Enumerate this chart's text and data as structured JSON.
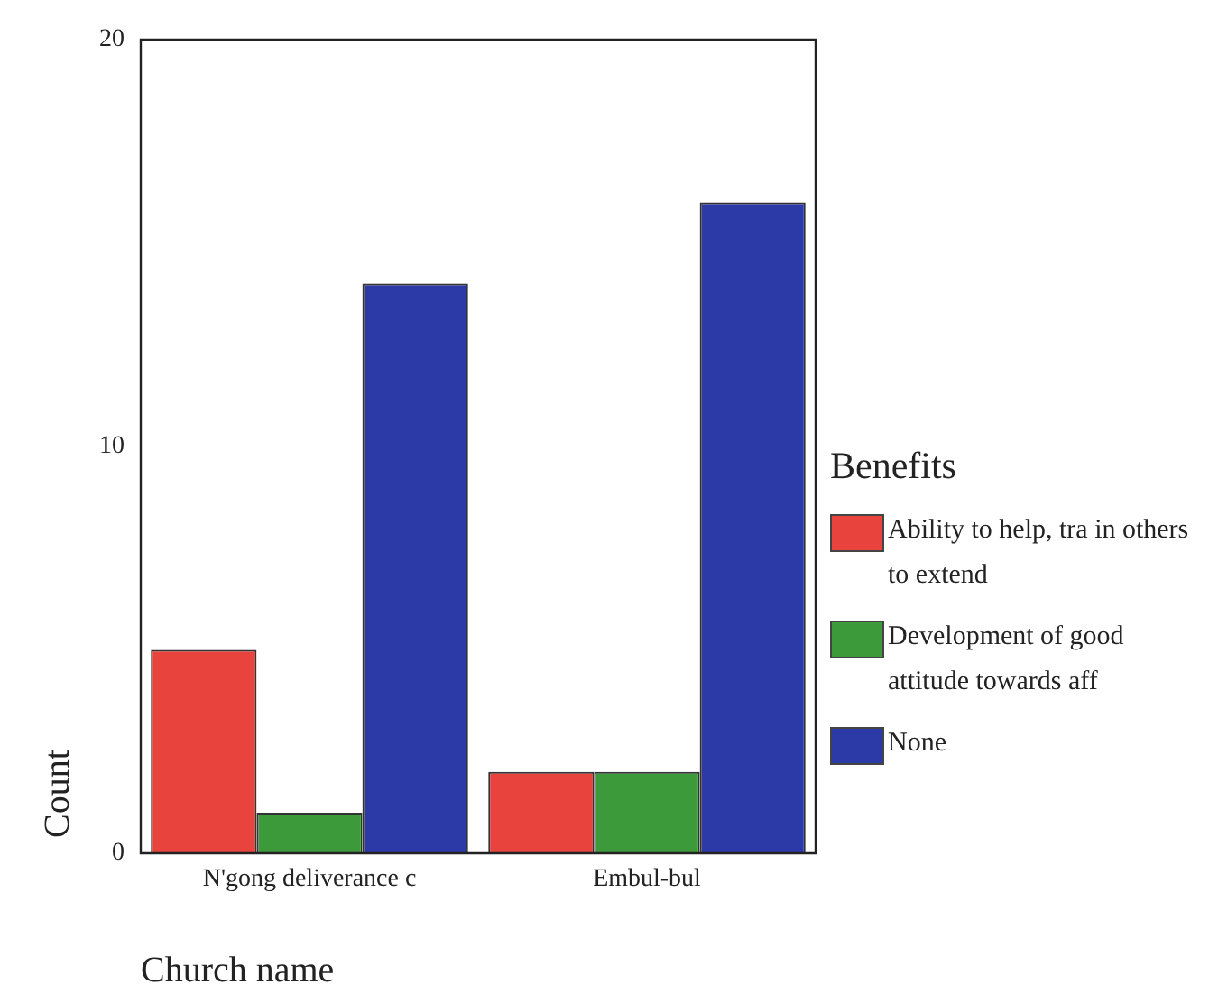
{
  "chart_data": {
    "type": "bar",
    "xlabel": "Church name",
    "ylabel": "Count",
    "legend_title": "Benefits",
    "legend": "right",
    "categories": [
      "N'gong deliverance c",
      "Embul-bul"
    ],
    "series": [
      {
        "name": "Ability to help, tra in others to extend",
        "color": "#e8433c",
        "values": [
          5,
          2
        ]
      },
      {
        "name": "Development of good attitude towards aff",
        "color": "#3c9a3a",
        "values": [
          1,
          2
        ]
      },
      {
        "name": "None",
        "color": "#2b3aa6",
        "values": [
          14,
          16
        ]
      }
    ],
    "ylim": [
      0,
      20
    ],
    "yticks": [
      0,
      10,
      20
    ],
    "grid": false
  }
}
